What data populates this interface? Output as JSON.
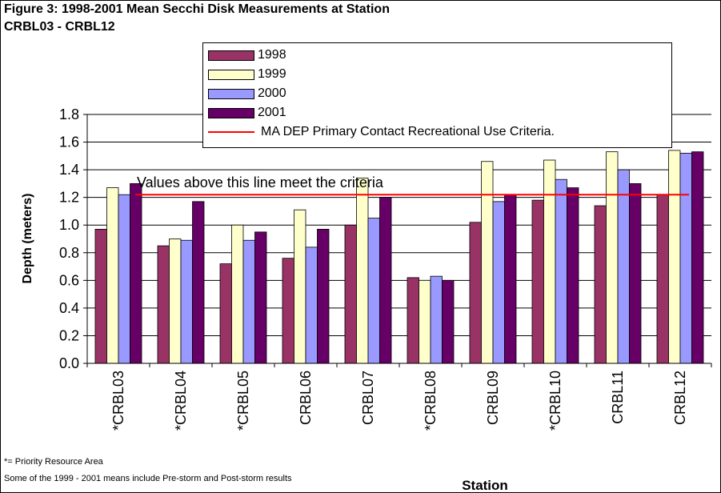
{
  "figure": {
    "title_line1": "Figure 3: 1998-2001 Mean Secchi Disk Measurements at Station",
    "title_line2": "CRBL03 - CRBL12",
    "footnote1": "*= Priority Resource Area",
    "footnote2": "Some of the 1999 - 2001 means include Pre-storm and Post-storm results"
  },
  "chart_data": {
    "type": "bar",
    "ylabel": "Depth (meters)",
    "xlabel": "Station",
    "ylim": [
      0.0,
      1.8
    ],
    "yticks": [
      "0.0",
      "0.2",
      "0.4",
      "0.6",
      "0.8",
      "1.0",
      "1.2",
      "1.4",
      "1.6",
      "1.8"
    ],
    "grid": "horizontal",
    "legend_position": "top-right",
    "categories": [
      "*CRBL03",
      "*CRBL04",
      "*CRBL05",
      "CRBL06",
      "CRBL07",
      "*CRBL08",
      "CRBL09",
      "*CRBL10",
      "CRBL11",
      "CRBL12"
    ],
    "series": [
      {
        "name": "1998",
        "color": "#993366",
        "values": [
          0.97,
          0.85,
          0.72,
          0.76,
          1.0,
          0.62,
          1.02,
          1.18,
          1.14,
          1.22
        ]
      },
      {
        "name": "1999",
        "color": "#ffffcc",
        "values": [
          1.27,
          0.9,
          1.0,
          1.11,
          1.34,
          0.6,
          1.46,
          1.47,
          1.53,
          1.54
        ]
      },
      {
        "name": "2000",
        "color": "#9999ff",
        "values": [
          1.22,
          0.89,
          0.89,
          0.84,
          1.05,
          0.63,
          1.17,
          1.33,
          1.4,
          1.52
        ]
      },
      {
        "name": "2001",
        "color": "#660066",
        "values": [
          1.3,
          1.17,
          0.95,
          0.97,
          1.2,
          0.6,
          1.22,
          1.27,
          1.3,
          1.53
        ]
      }
    ],
    "reference_line": {
      "name": "MA DEP Primary Contact Recreational Use Criteria.",
      "value": 1.22,
      "color": "#ff0000",
      "annotation": "Values above this line meet the criteria"
    }
  }
}
